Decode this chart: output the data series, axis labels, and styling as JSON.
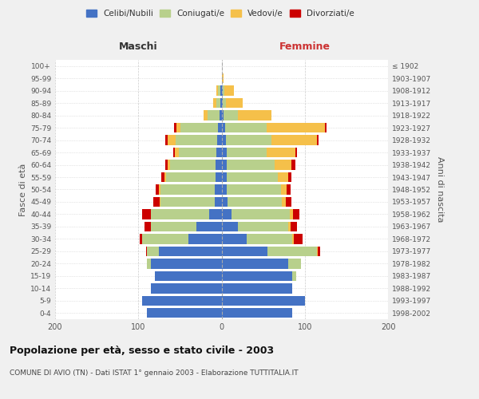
{
  "age_groups": [
    "0-4",
    "5-9",
    "10-14",
    "15-19",
    "20-24",
    "25-29",
    "30-34",
    "35-39",
    "40-44",
    "45-49",
    "50-54",
    "55-59",
    "60-64",
    "65-69",
    "70-74",
    "75-79",
    "80-84",
    "85-89",
    "90-94",
    "95-99",
    "100+"
  ],
  "birth_years": [
    "1998-2002",
    "1993-1997",
    "1988-1992",
    "1983-1987",
    "1978-1982",
    "1973-1977",
    "1968-1972",
    "1963-1967",
    "1958-1962",
    "1953-1957",
    "1948-1952",
    "1943-1947",
    "1938-1942",
    "1933-1937",
    "1928-1932",
    "1923-1927",
    "1918-1922",
    "1913-1917",
    "1908-1912",
    "1903-1907",
    "≤ 1902"
  ],
  "maschi": {
    "celibi": [
      90,
      95,
      85,
      80,
      85,
      75,
      40,
      30,
      15,
      8,
      8,
      7,
      7,
      6,
      5,
      4,
      2,
      1,
      1,
      0,
      0
    ],
    "coniugati": [
      0,
      0,
      0,
      0,
      5,
      15,
      55,
      55,
      70,
      65,
      65,
      60,
      55,
      45,
      50,
      45,
      15,
      5,
      3,
      0,
      0
    ],
    "vedovi": [
      0,
      0,
      0,
      0,
      0,
      0,
      0,
      0,
      0,
      1,
      2,
      2,
      3,
      5,
      10,
      5,
      5,
      4,
      2,
      0,
      0
    ],
    "divorziati": [
      0,
      0,
      0,
      0,
      0,
      1,
      3,
      8,
      10,
      8,
      4,
      3,
      3,
      2,
      3,
      3,
      0,
      0,
      0,
      0,
      0
    ]
  },
  "femmine": {
    "nubili": [
      85,
      100,
      85,
      85,
      80,
      55,
      30,
      20,
      12,
      7,
      6,
      6,
      6,
      6,
      5,
      4,
      2,
      1,
      1,
      0,
      0
    ],
    "coniugate": [
      0,
      0,
      0,
      5,
      15,
      60,
      55,
      60,
      70,
      65,
      65,
      62,
      58,
      48,
      55,
      50,
      18,
      4,
      2,
      0,
      0
    ],
    "vedove": [
      0,
      0,
      0,
      0,
      0,
      1,
      2,
      3,
      4,
      5,
      7,
      12,
      20,
      35,
      55,
      70,
      40,
      20,
      12,
      2,
      0
    ],
    "divorziate": [
      0,
      0,
      0,
      0,
      0,
      2,
      10,
      8,
      8,
      7,
      5,
      4,
      5,
      2,
      2,
      2,
      0,
      0,
      0,
      0,
      0
    ]
  },
  "colors": {
    "celibi_nubili": "#4472c4",
    "coniugati": "#b8d08c",
    "vedovi": "#f5c04a",
    "divorziati": "#cc0000"
  },
  "title": "Popolazione per età, sesso e stato civile - 2003",
  "subtitle": "COMUNE DI AVIO (TN) - Dati ISTAT 1° gennaio 2003 - Elaborazione TUTTITALIA.IT",
  "xlabel_left": "Maschi",
  "xlabel_right": "Femmine",
  "ylabel_left": "Fasce di età",
  "ylabel_right": "Anni di nascita",
  "xlim": 200,
  "bg_color": "#f0f0f0",
  "plot_bg": "#ffffff"
}
